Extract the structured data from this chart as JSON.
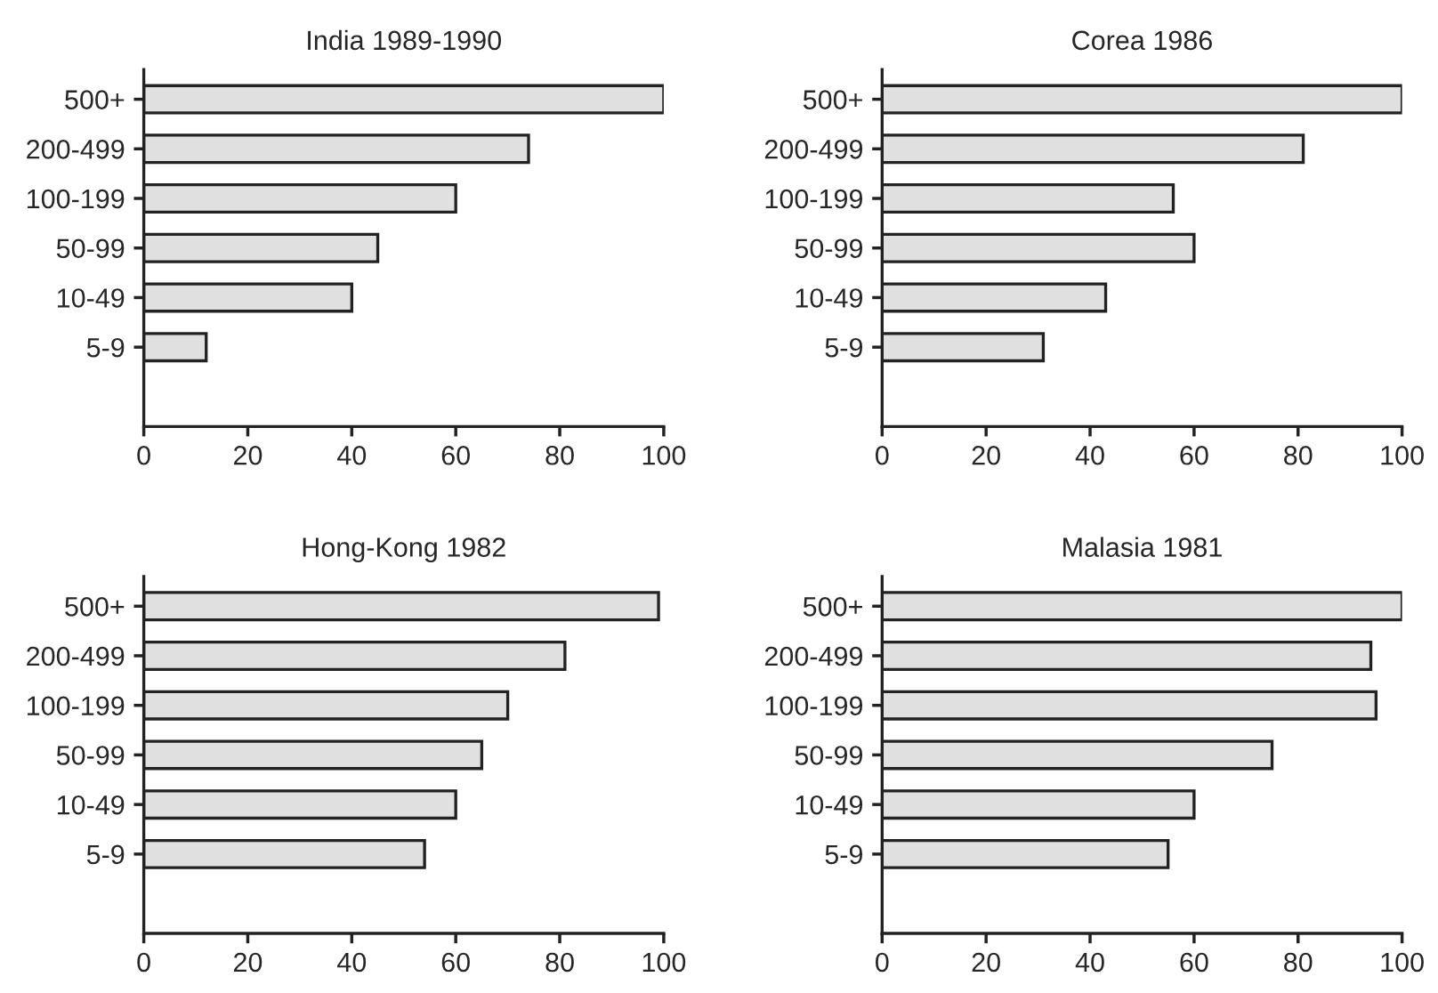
{
  "chart_data": [
    {
      "type": "bar",
      "orientation": "horizontal",
      "title": "India 1989-1990",
      "categories": [
        "500+",
        "200-499",
        "100-199",
        "50-99",
        "10-49",
        "5-9"
      ],
      "values": [
        100,
        74,
        60,
        45,
        40,
        12
      ],
      "color": "#e0e0e0",
      "xlim": [
        0,
        100
      ],
      "xticks": [
        0,
        20,
        40,
        60,
        80,
        100
      ],
      "grid": false,
      "legend": false
    },
    {
      "type": "bar",
      "orientation": "horizontal",
      "title": "Corea 1986",
      "categories": [
        "500+",
        "200-499",
        "100-199",
        "50-99",
        "10-49",
        "5-9"
      ],
      "values": [
        100,
        81,
        56,
        60,
        43,
        31
      ],
      "color": "#e0e0e0",
      "xlim": [
        0,
        100
      ],
      "xticks": [
        0,
        20,
        40,
        60,
        80,
        100
      ],
      "grid": false,
      "legend": false
    },
    {
      "type": "bar",
      "orientation": "horizontal",
      "title": "Hong-Kong 1982",
      "categories": [
        "500+",
        "200-499",
        "100-199",
        "50-99",
        "10-49",
        "5-9"
      ],
      "values": [
        99,
        81,
        70,
        65,
        60,
        54
      ],
      "color": "#e0e0e0",
      "xlim": [
        0,
        100
      ],
      "xticks": [
        0,
        20,
        40,
        60,
        80,
        100
      ],
      "grid": false,
      "legend": false
    },
    {
      "type": "bar",
      "orientation": "horizontal",
      "title": "Malasia 1981",
      "categories": [
        "500+",
        "200-499",
        "100-199",
        "50-99",
        "10-49",
        "5-9"
      ],
      "values": [
        100,
        94,
        95,
        75,
        60,
        55
      ],
      "color": "#e0e0e0",
      "xlim": [
        0,
        100
      ],
      "xticks": [
        0,
        20,
        40,
        60,
        80,
        100
      ],
      "grid": false,
      "legend": false
    }
  ]
}
